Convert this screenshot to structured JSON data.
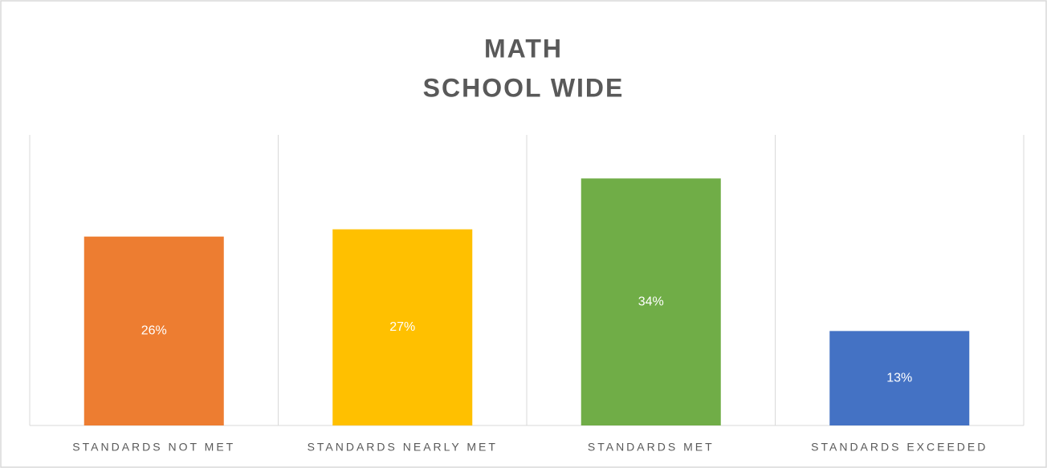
{
  "chart_data": {
    "type": "bar",
    "title": [
      "MATH",
      "SCHOOL WIDE"
    ],
    "categories": [
      "STANDARDS NOT MET",
      "STANDARDS NEARLY MET",
      "STANDARDS MET",
      "STANDARDS EXCEEDED"
    ],
    "values": [
      26,
      27,
      34,
      13
    ],
    "value_labels": [
      "26%",
      "27%",
      "34%",
      "13%"
    ],
    "colors": [
      "#ed7d31",
      "#ffc000",
      "#70ad47",
      "#4472c4"
    ],
    "ylim": [
      0,
      40
    ]
  }
}
